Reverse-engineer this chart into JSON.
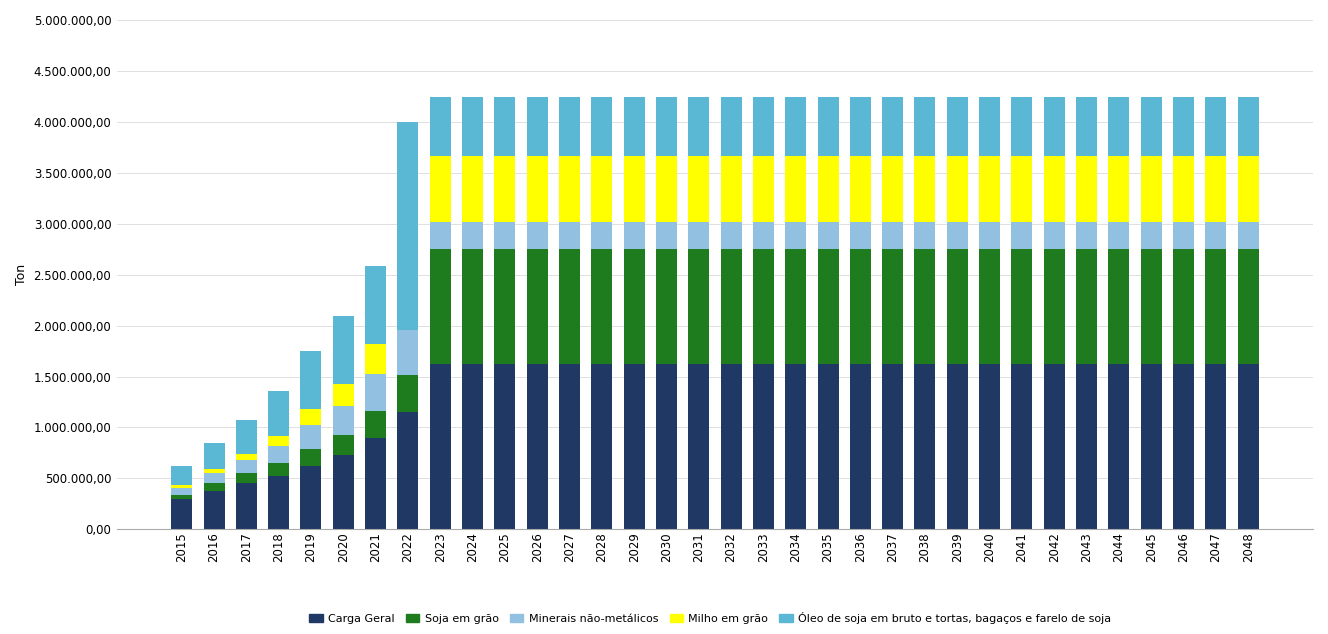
{
  "years": [
    2015,
    2016,
    2017,
    2018,
    2019,
    2020,
    2021,
    2022,
    2023,
    2024,
    2025,
    2026,
    2027,
    2028,
    2029,
    2030,
    2031,
    2032,
    2033,
    2034,
    2035,
    2036,
    2037,
    2038,
    2039,
    2040,
    2041,
    2042,
    2043,
    2044,
    2045,
    2046,
    2047,
    2048
  ],
  "series": {
    "Carga Geral": [
      300000,
      380000,
      450000,
      520000,
      620000,
      730000,
      900000,
      1150000,
      1620000,
      1620000,
      1620000,
      1620000,
      1620000,
      1620000,
      1620000,
      1620000,
      1620000,
      1620000,
      1620000,
      1620000,
      1620000,
      1620000,
      1620000,
      1620000,
      1620000,
      1620000,
      1620000,
      1620000,
      1620000,
      1620000,
      1620000,
      1620000,
      1620000,
      1620000
    ],
    "Soja em grão": [
      40000,
      70000,
      100000,
      130000,
      170000,
      200000,
      260000,
      360000,
      1130000,
      1130000,
      1130000,
      1130000,
      1130000,
      1130000,
      1130000,
      1130000,
      1130000,
      1130000,
      1130000,
      1130000,
      1130000,
      1130000,
      1130000,
      1130000,
      1130000,
      1130000,
      1130000,
      1130000,
      1130000,
      1130000,
      1130000,
      1130000,
      1130000,
      1130000
    ],
    "Minerais não-metálicos": [
      70000,
      100000,
      130000,
      170000,
      230000,
      280000,
      360000,
      450000,
      270000,
      270000,
      270000,
      270000,
      270000,
      270000,
      270000,
      270000,
      270000,
      270000,
      270000,
      270000,
      270000,
      270000,
      270000,
      270000,
      270000,
      270000,
      270000,
      270000,
      270000,
      270000,
      270000,
      270000,
      270000,
      270000
    ],
    "Milho em grão": [
      20000,
      40000,
      60000,
      100000,
      160000,
      220000,
      300000,
      0,
      640000,
      640000,
      640000,
      640000,
      640000,
      640000,
      640000,
      640000,
      640000,
      640000,
      640000,
      640000,
      640000,
      640000,
      640000,
      640000,
      640000,
      640000,
      640000,
      640000,
      640000,
      640000,
      640000,
      640000,
      640000,
      640000
    ],
    "Óleo de soja em bruto e tortas, bagaços e farelo de soja": [
      190000,
      260000,
      330000,
      440000,
      570000,
      660000,
      760000,
      2040000,
      580000,
      580000,
      580000,
      580000,
      580000,
      580000,
      580000,
      580000,
      580000,
      580000,
      580000,
      580000,
      580000,
      580000,
      580000,
      580000,
      580000,
      580000,
      580000,
      580000,
      580000,
      580000,
      580000,
      580000,
      580000,
      580000
    ]
  },
  "colors": {
    "Carga Geral": "#1F3864",
    "Soja em grão": "#1E7B1E",
    "Minerais não-metálicos": "#92C0E0",
    "Milho em grão": "#FFFF00",
    "Óleo de soja em bruto e tortas, bagaços e farelo de soja": "#5BB8D4"
  },
  "ylabel": "Ton",
  "ylim": [
    0,
    5000000
  ],
  "yticks": [
    0,
    500000,
    1000000,
    1500000,
    2000000,
    2500000,
    3000000,
    3500000,
    4000000,
    4500000,
    5000000
  ],
  "background_color": "#FFFFFF",
  "bar_width": 0.65
}
